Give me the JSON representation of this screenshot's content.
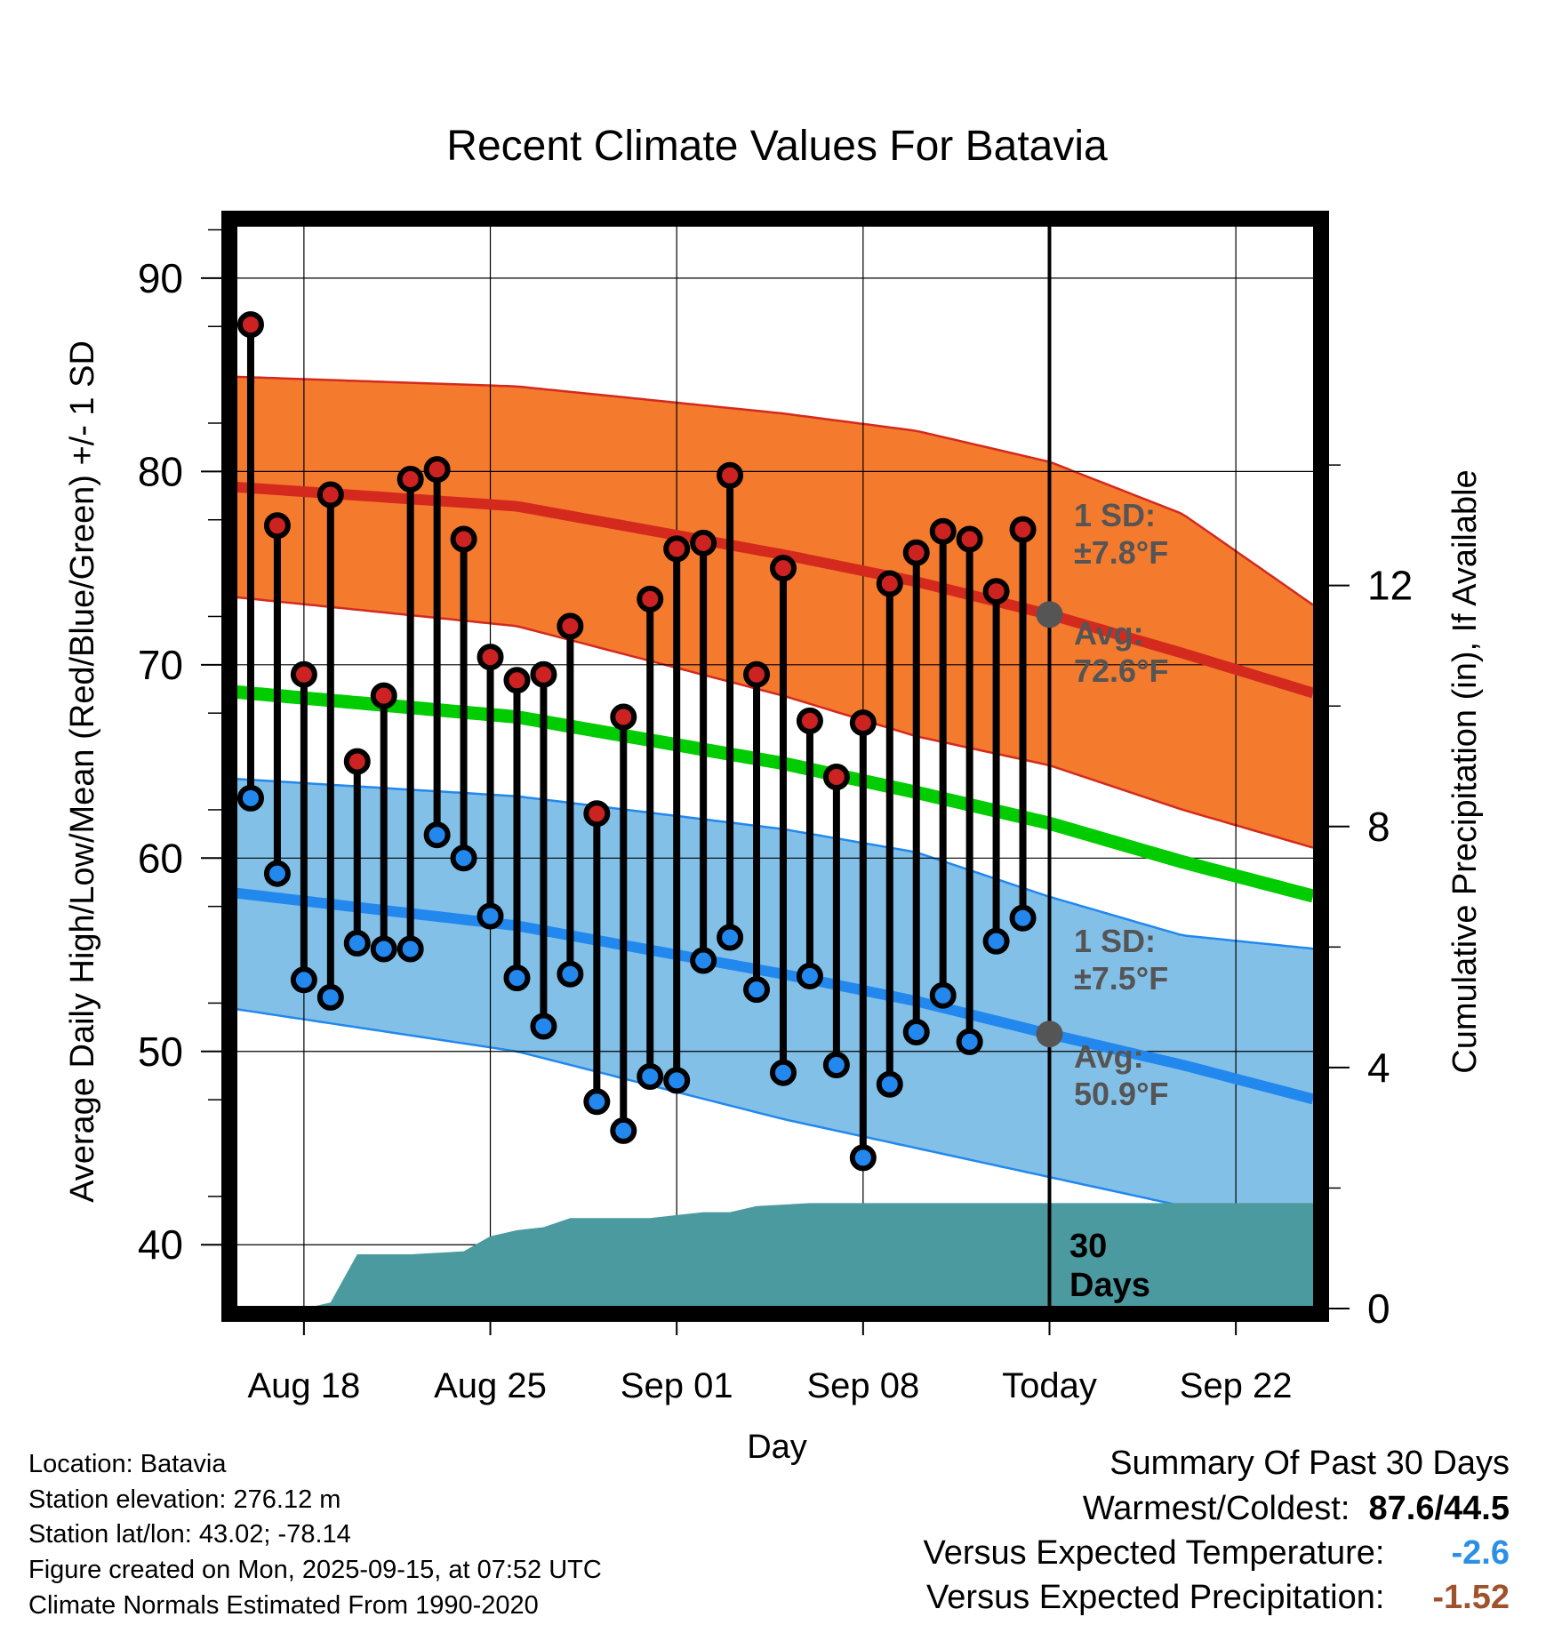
{
  "chart_data": {
    "type": "line",
    "title": "Recent Climate Values For Batavia",
    "xlabel": "Day",
    "ylabel": "Average Daily High/Low/Mean (Red/Blue/Green) +/- 1 SD",
    "y2label": "Cumulative Precipitation (in), If Available",
    "ylim": [
      36.7,
      92.8
    ],
    "y2lim": [
      0,
      18
    ],
    "y_ticks": [
      40,
      50,
      60,
      70,
      80,
      90
    ],
    "y2_ticks": [
      0,
      4,
      8,
      12
    ],
    "x_tick_labels": [
      "Aug 18",
      "Aug 25",
      "Sep 01",
      "Sep 08",
      "Today",
      "Sep 22"
    ],
    "x_tick_days": [
      2,
      9,
      16,
      23,
      30,
      37
    ],
    "xlim": [
      -0.6,
      40.0
    ],
    "days": [
      0,
      1,
      2,
      3,
      4,
      5,
      6,
      7,
      8,
      9,
      10,
      11,
      12,
      13,
      14,
      15,
      16,
      17,
      18,
      19,
      20,
      21,
      22,
      23,
      24,
      25,
      26,
      27,
      28,
      29
    ],
    "series": [
      {
        "name": "Daily High",
        "color": "#cc2222",
        "values": [
          87.6,
          77.2,
          69.5,
          78.8,
          65.0,
          68.4,
          79.6,
          80.1,
          76.5,
          70.4,
          69.2,
          69.5,
          72.0,
          62.3,
          67.3,
          73.4,
          76.0,
          76.3,
          79.8,
          69.5,
          75.0,
          67.1,
          64.2,
          67.0,
          74.2,
          75.8,
          76.9,
          76.5,
          73.8,
          77.0
        ]
      },
      {
        "name": "Daily Low",
        "color": "#2288ee",
        "values": [
          63.1,
          59.2,
          53.7,
          52.8,
          55.6,
          55.3,
          55.3,
          61.2,
          60.0,
          57.0,
          53.8,
          51.3,
          54.0,
          47.4,
          45.9,
          48.7,
          48.5,
          54.7,
          55.9,
          53.2,
          48.9,
          53.9,
          49.3,
          44.5,
          48.3,
          51.0,
          52.9,
          50.5,
          55.7,
          56.9
        ]
      }
    ],
    "normals": {
      "days": [
        -0.6,
        10,
        20,
        25,
        30,
        35,
        40
      ],
      "high_mean": [
        79.2,
        78.2,
        75.7,
        74.3,
        72.6,
        70.6,
        68.5
      ],
      "high_sd_upper": [
        84.9,
        84.4,
        83.0,
        82.1,
        80.5,
        77.8,
        73.0
      ],
      "high_sd_lower": [
        73.5,
        72.0,
        68.4,
        66.3,
        64.8,
        62.5,
        60.5
      ],
      "low_mean": [
        58.2,
        56.5,
        54.0,
        52.6,
        50.9,
        49.3,
        47.5
      ],
      "low_sd_upper": [
        64.1,
        63.2,
        61.5,
        60.3,
        58.0,
        56.0,
        55.3
      ],
      "low_sd_lower": [
        52.2,
        50.0,
        46.5,
        45.0,
        43.5,
        42.0,
        41.0
      ],
      "mean": [
        68.6,
        67.3,
        64.9,
        63.4,
        61.8,
        59.8,
        58.0
      ]
    },
    "precipitation": {
      "days": [
        -0.6,
        2.0,
        3.0,
        4.0,
        6.0,
        8.0,
        9.0,
        10.0,
        11.0,
        12.0,
        15.0,
        16.0,
        17.0,
        18.0,
        19.0,
        21.0,
        22.0,
        40.0
      ],
      "values": [
        0.0,
        0.0,
        0.1,
        0.9,
        0.9,
        0.95,
        1.2,
        1.3,
        1.35,
        1.5,
        1.5,
        1.55,
        1.6,
        1.6,
        1.7,
        1.75,
        1.75,
        1.75
      ]
    },
    "colors": {
      "high_band": "#f47a2e",
      "low_band": "#82c0e8",
      "mean_line": "#00cc00",
      "precip": "#4a9aa0",
      "annotation": "#555555"
    },
    "annotations": {
      "high_sd_label": "1 SD:",
      "high_sd_value": "±7.8°F",
      "high_avg_label": "Avg:",
      "high_avg_value": "72.6°F",
      "low_sd_label": "1 SD:",
      "low_sd_value": "±7.5°F",
      "low_avg_label": "Avg:",
      "low_avg_value": "50.9°F",
      "precip_label_1": "30",
      "precip_label_2": "Days"
    }
  },
  "info": {
    "location": "Location: Batavia",
    "elevation": "Station elevation: 276.12 m",
    "latlon": "Station lat/lon: 43.02; -78.14",
    "created": "Figure created on Mon, 2025-09-15, at 07:52 UTC",
    "normals": "Climate Normals Estimated From 1990-2020"
  },
  "summary": {
    "title": "Summary Of Past 30 Days",
    "warm_cold_label": "Warmest/Coldest:",
    "warm_cold_value": "87.6/44.5",
    "temp_label": "Versus Expected Temperature:",
    "temp_value": "-2.6",
    "temp_color": "#2b8fe8",
    "precip_label": "Versus Expected Precipitation:",
    "precip_value": "-1.52",
    "precip_color": "#a0522d"
  }
}
